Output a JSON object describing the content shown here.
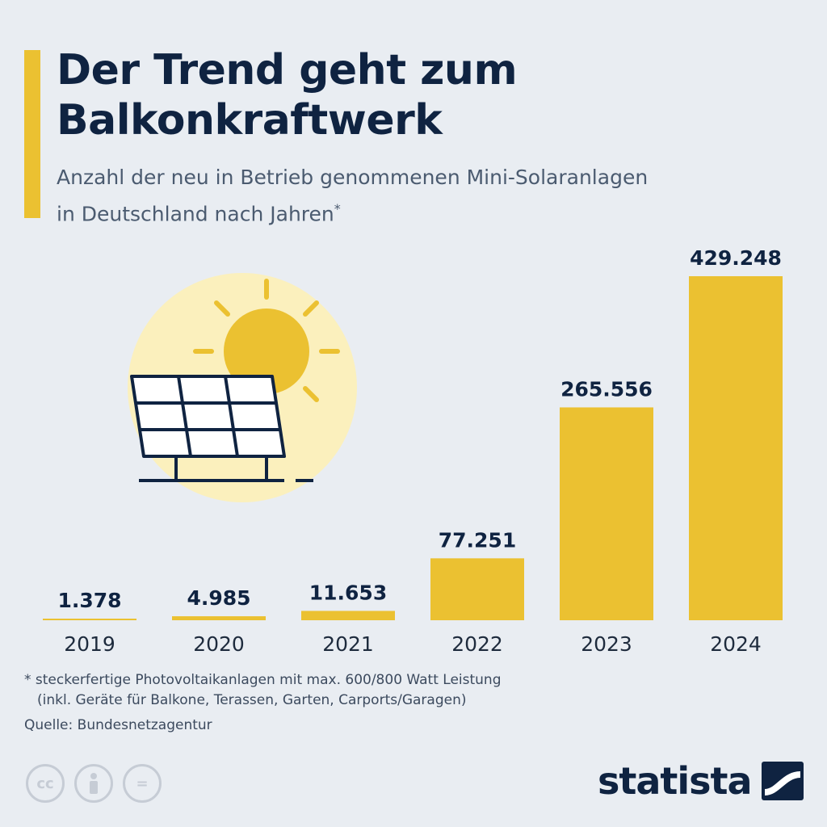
{
  "header": {
    "title_line1": "Der Trend geht zum",
    "title_line2": "Balkonkraftwerk",
    "subtitle_line1": "Anzahl der neu in Betrieb genommenen Mini-Solaranlagen",
    "subtitle_line2": "in Deutschland nach Jahren",
    "subtitle_mark": "*"
  },
  "chart_data": {
    "type": "bar",
    "title": "Der Trend geht zum Balkonkraftwerk",
    "subtitle": "Anzahl der neu in Betrieb genommenen Mini-Solaranlagen in Deutschland nach Jahren*",
    "categories": [
      "2019",
      "2020",
      "2021",
      "2022",
      "2023",
      "2024"
    ],
    "values": [
      1378,
      4985,
      11653,
      77251,
      265556,
      429248
    ],
    "value_labels": [
      "1.378",
      "4.985",
      "11.653",
      "77.251",
      "265.556",
      "429.248"
    ],
    "xlabel": "",
    "ylabel": "",
    "ylim": [
      0,
      429248
    ],
    "grid": false,
    "legend": "none",
    "bar_color": "#ebc131"
  },
  "footer": {
    "footnote_line1": "* steckerfertige Photovoltaikanlagen mit max. 600/800 Watt Leistung",
    "footnote_line2": "(inkl. Geräte für Balkone, Terassen, Garten, Carports/Garagen)",
    "source": "Quelle: Bundesnetzagentur",
    "brand": "statista",
    "license_icons": [
      "cc-icon",
      "by-icon",
      "nd-icon"
    ],
    "cc_text": "cc",
    "nd_text": "="
  },
  "colors": {
    "background": "#e9edf2",
    "accent": "#ebc131",
    "text_dark": "#0f2341",
    "sun_halo": "#fbf0bd",
    "sun": "#ebc131"
  }
}
